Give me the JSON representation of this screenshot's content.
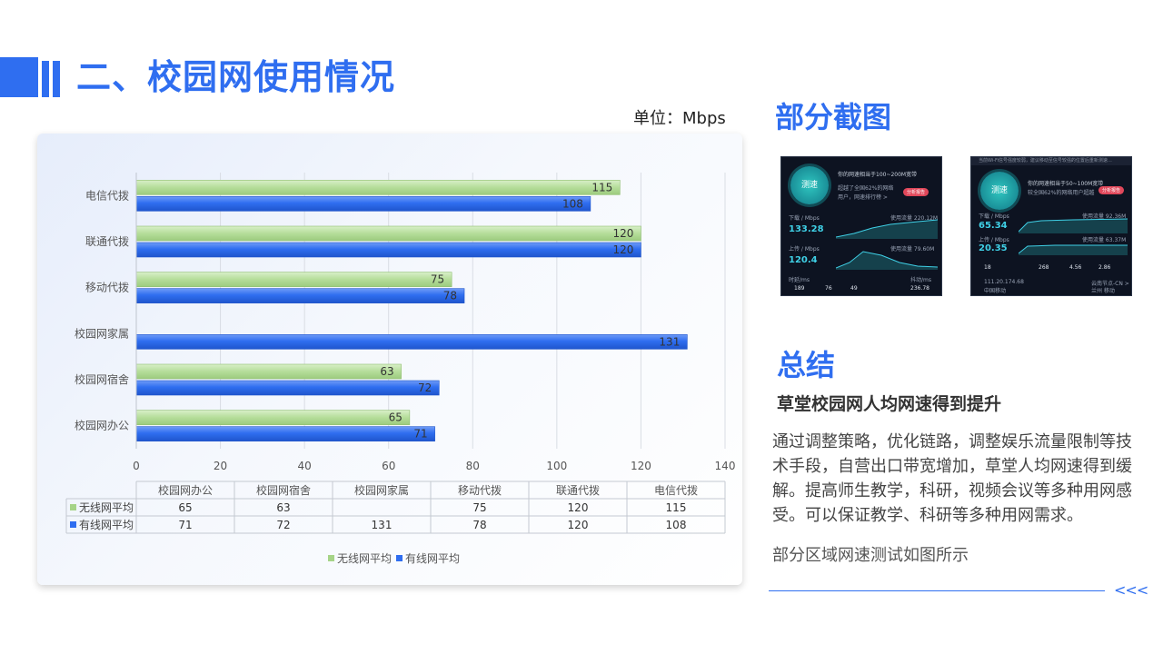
{
  "page": {
    "title": "二、校园网使用情况",
    "unit_label": "单位：Mbps",
    "accent_color": "#2f6ef0"
  },
  "screenshots_section": {
    "title": "部分截图",
    "shot1": {
      "button": "测速",
      "line1": "你的网速相当于100~200M宽带",
      "line2": "超越了全国62%的网络",
      "line3": "用户，网速排行榜 >",
      "badge": "分析报告",
      "download_label": "下载 / Mbps",
      "download_value": "133.28",
      "download_usage": "使用流量 220.12M",
      "upload_label": "上传 / Mbps",
      "upload_value": "120.4",
      "upload_usage": "使用流量 79.60M",
      "ping_label": "时延/ms",
      "ping": "189",
      "stat2": "76",
      "stat3": "49",
      "jitter_label": "抖动/ms",
      "jitter": "236.78"
    },
    "shot2": {
      "warning": "当前Wi-Fi信号强度较弱，建议移动至信号较强的位置后重新测速…",
      "button": "测速",
      "line1": "你的网速相当于50~100M宽带",
      "line2": "较全国62%的网络用户超越",
      "badge": "分析报告",
      "download_label": "下载 / Mbps",
      "download_value": "65.34",
      "download_usage": "使用流量 92.36M",
      "upload_label": "上传 / Mbps",
      "upload_value": "20.35",
      "upload_usage": "使用流量 63.37M",
      "stat1": "18",
      "stat2": "268",
      "stat3": "4.56",
      "stat4": "2.86",
      "ip": "111.20.174.68",
      "isp": "中国移动",
      "server": "云南节点-CN >",
      "server2": "兰州 移动"
    }
  },
  "summary": {
    "title": "总结",
    "headline": "草堂校园网人均网速得到提升",
    "body": "通过调整策略，优化链路，调整娱乐流量限制等技术手段，自营出口带宽增加，草堂人均网速得到缓解。提高师生教学，科研，视频会议等多种用网感受。可以保证教学、科研等多种用网需求。",
    "note": "部分区域网速测试如图所示"
  },
  "footer": {
    "arrows": "<<<"
  },
  "chart_data": {
    "type": "bar",
    "orientation": "horizontal",
    "categories": [
      "校园网办公",
      "校园网宿舍",
      "校园网家属",
      "移动代拨",
      "联通代拨",
      "电信代拨"
    ],
    "series": [
      {
        "name": "无线网平均",
        "values": [
          65,
          63,
          null,
          75,
          120,
          115
        ],
        "color": "#b5dd9a"
      },
      {
        "name": "有线网平均",
        "values": [
          71,
          72,
          131,
          78,
          120,
          108
        ],
        "color": "#2f6ef0"
      }
    ],
    "xlim": [
      0,
      140
    ],
    "xticks": [
      0,
      20,
      40,
      60,
      80,
      100,
      120,
      140
    ],
    "grid": true,
    "data_table": true,
    "legend": "bottom"
  }
}
